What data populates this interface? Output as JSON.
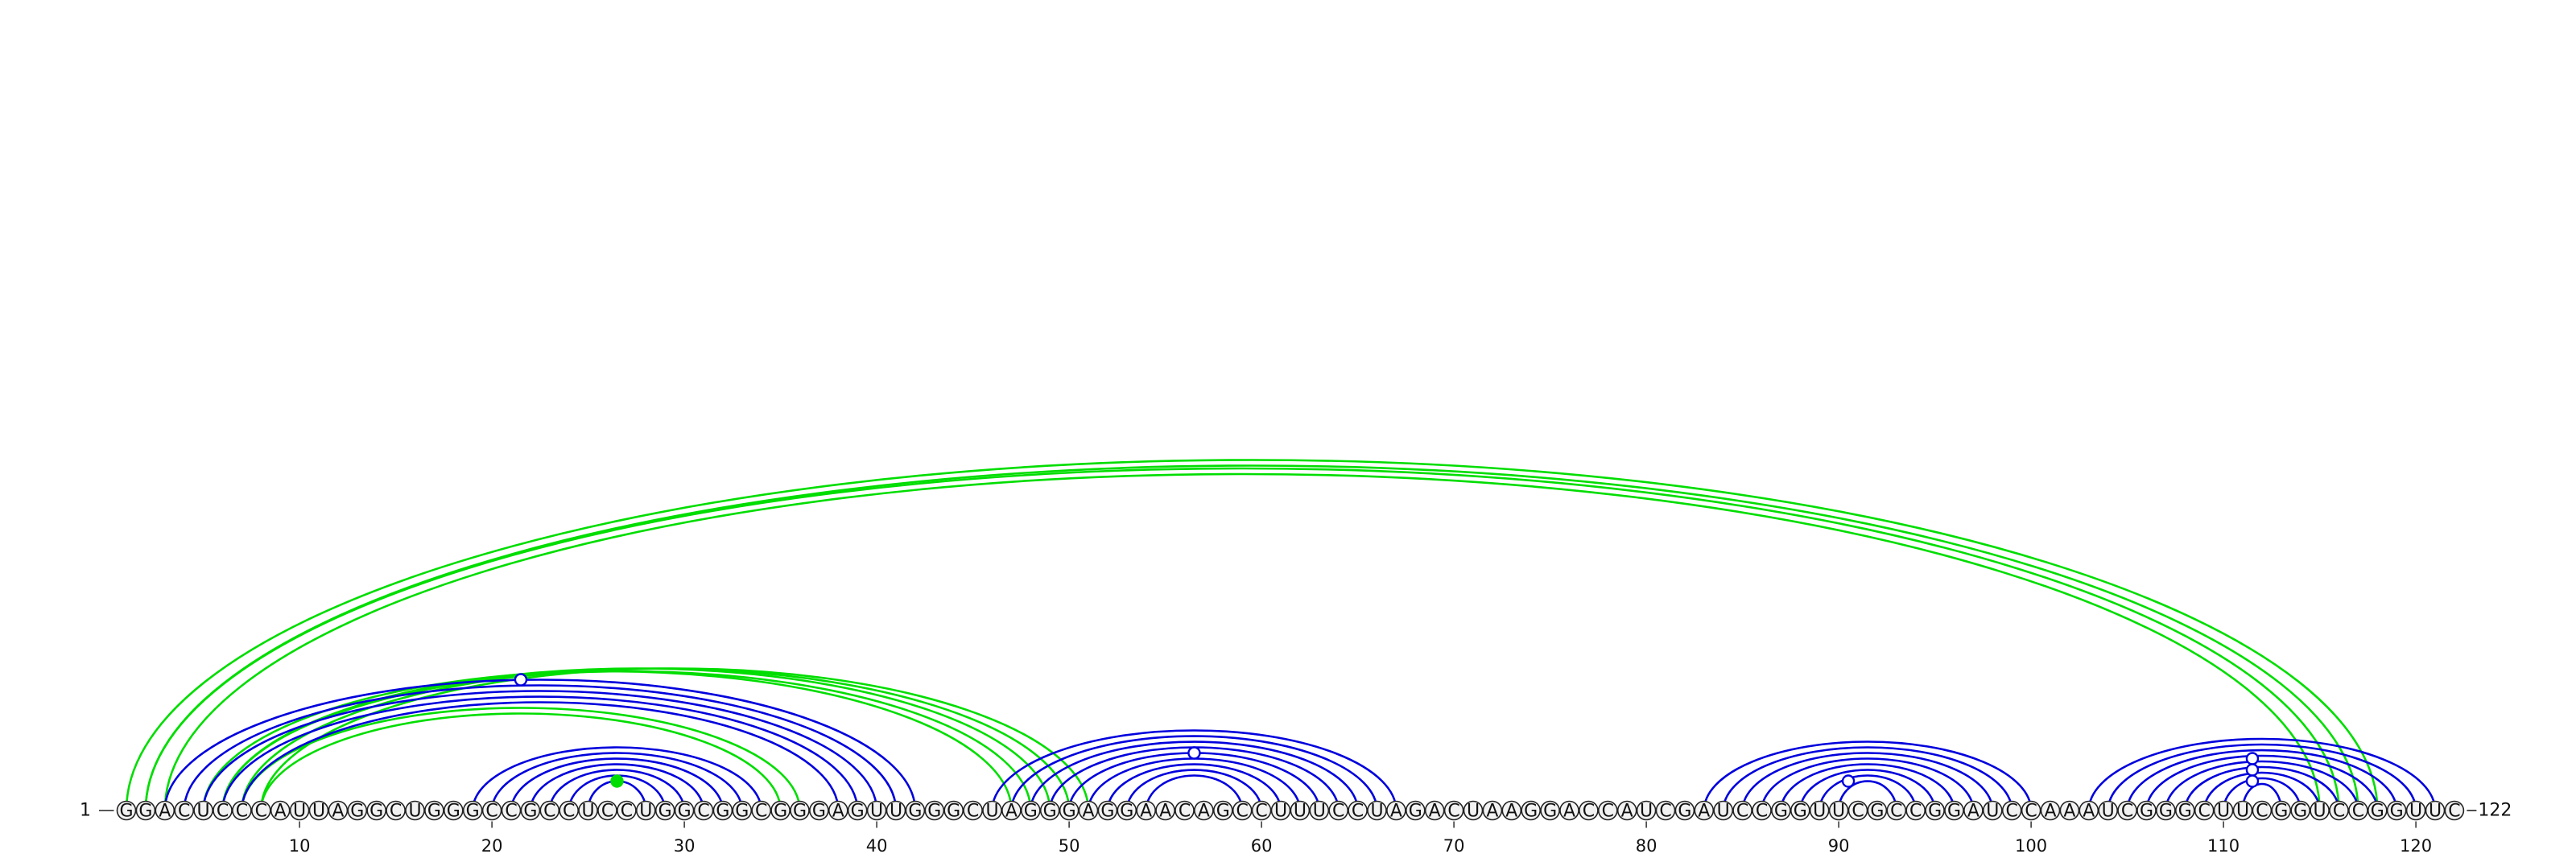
{
  "sequence": "GGACUCCCAUUAGGCUGGGCCGCCUCCUGGCGGCGGGAGUUGGGCUAGGGAGGAACAGCCUUUCCUAGACUAAGGACCAUCGAUCCGGUUCGCCGGAUCCAAAUCGGGCUUCGGUCCGGUUC",
  "start_label": "1",
  "end_label": "122",
  "ticks": [
    10,
    20,
    30,
    40,
    50,
    60,
    70,
    80,
    90,
    100,
    110,
    120
  ],
  "colors": {
    "blue": "#0000dd",
    "green": "#00dd00"
  },
  "green_arcs": [
    [
      1,
      118
    ],
    [
      2,
      117
    ],
    [
      2,
      116
    ],
    [
      3,
      115
    ],
    [
      5,
      47
    ],
    [
      6,
      48
    ],
    [
      6,
      49
    ],
    [
      7,
      50
    ],
    [
      8,
      51
    ],
    [
      7,
      36
    ],
    [
      8,
      35
    ]
  ],
  "blue_arcs": [
    [
      3,
      42
    ],
    [
      4,
      41
    ],
    [
      5,
      40
    ],
    [
      6,
      39
    ],
    [
      7,
      38
    ],
    [
      19,
      34
    ],
    [
      20,
      33
    ],
    [
      21,
      32
    ],
    [
      22,
      31
    ],
    [
      23,
      30
    ],
    [
      24,
      29
    ],
    [
      25,
      28
    ],
    [
      46,
      67
    ],
    [
      47,
      66
    ],
    [
      48,
      65
    ],
    [
      49,
      64
    ],
    [
      50,
      63
    ],
    [
      51,
      62
    ],
    [
      52,
      61
    ],
    [
      53,
      60
    ],
    [
      54,
      59
    ],
    [
      83,
      100
    ],
    [
      84,
      99
    ],
    [
      85,
      98
    ],
    [
      86,
      97
    ],
    [
      87,
      96
    ],
    [
      88,
      95
    ],
    [
      89,
      94
    ],
    [
      90,
      93
    ],
    [
      103,
      121
    ],
    [
      104,
      120
    ],
    [
      105,
      119
    ],
    [
      106,
      118
    ],
    [
      107,
      117
    ],
    [
      108,
      116
    ],
    [
      109,
      115
    ],
    [
      110,
      114
    ],
    [
      111,
      113
    ]
  ],
  "open_markers": [
    {
      "center": 21.5,
      "top_arc": [
        3,
        42
      ],
      "color": "blue"
    },
    {
      "center": 56.5,
      "top_arc": [
        50,
        63
      ],
      "color": "blue"
    },
    {
      "center": 90.5,
      "top_arc": [
        90,
        93
      ],
      "color": "blue"
    },
    {
      "center": 111.5,
      "top_arc": [
        106,
        117
      ],
      "color": "blue"
    },
    {
      "center": 111.5,
      "top_arc": [
        108,
        115
      ],
      "color": "blue"
    },
    {
      "center": 111.5,
      "top_arc": [
        110,
        113
      ],
      "color": "blue"
    }
  ],
  "filled_markers": [
    {
      "center": 26.5,
      "top_arc": [
        25,
        28
      ],
      "color": "green"
    }
  ]
}
